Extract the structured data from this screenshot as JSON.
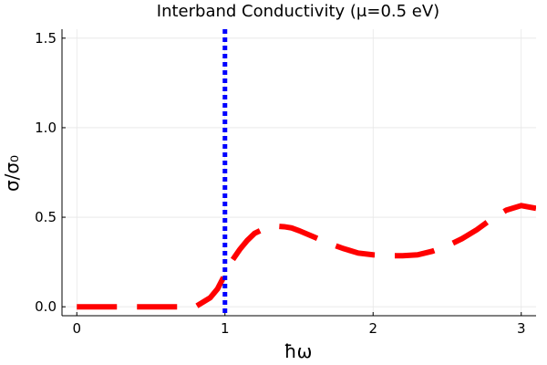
{
  "chart_data": {
    "type": "line",
    "title": "Interband Conductivity (μ=0.5 eV)",
    "xlabel": "ħω",
    "ylabel": "σ/σ₀",
    "xlim": [
      -0.1,
      3.1
    ],
    "ylim": [
      -0.05,
      1.55
    ],
    "xticks": [
      0,
      1,
      2,
      3
    ],
    "xtick_labels": [
      "0",
      "1",
      "2",
      "3"
    ],
    "yticks": [
      0.0,
      0.5,
      1.0,
      1.5
    ],
    "ytick_labels": [
      "0.0",
      "0.5",
      "1.0",
      "1.5"
    ],
    "grid": true,
    "legend": "none",
    "series": [
      {
        "style": "dashed",
        "color": "#ff0000",
        "x": [
          0.0,
          0.2,
          0.4,
          0.6,
          0.8,
          0.9,
          0.95,
          1.0,
          1.05,
          1.1,
          1.15,
          1.2,
          1.25,
          1.3,
          1.35,
          1.4,
          1.45,
          1.5,
          1.6,
          1.7,
          1.8,
          1.9,
          2.0,
          2.1,
          2.2,
          2.3,
          2.4,
          2.5,
          2.6,
          2.7,
          2.8,
          2.9,
          3.0,
          3.1
        ],
        "y": [
          0.0,
          0.0,
          0.0,
          0.0,
          0.0,
          0.05,
          0.1,
          0.18,
          0.26,
          0.32,
          0.37,
          0.41,
          0.43,
          0.445,
          0.45,
          0.447,
          0.44,
          0.425,
          0.39,
          0.355,
          0.325,
          0.3,
          0.29,
          0.285,
          0.285,
          0.29,
          0.31,
          0.34,
          0.38,
          0.43,
          0.49,
          0.54,
          0.565,
          0.55
        ]
      }
    ],
    "vlines": [
      {
        "x": 1.0,
        "style": "dotted",
        "color": "#0000ff"
      }
    ]
  }
}
